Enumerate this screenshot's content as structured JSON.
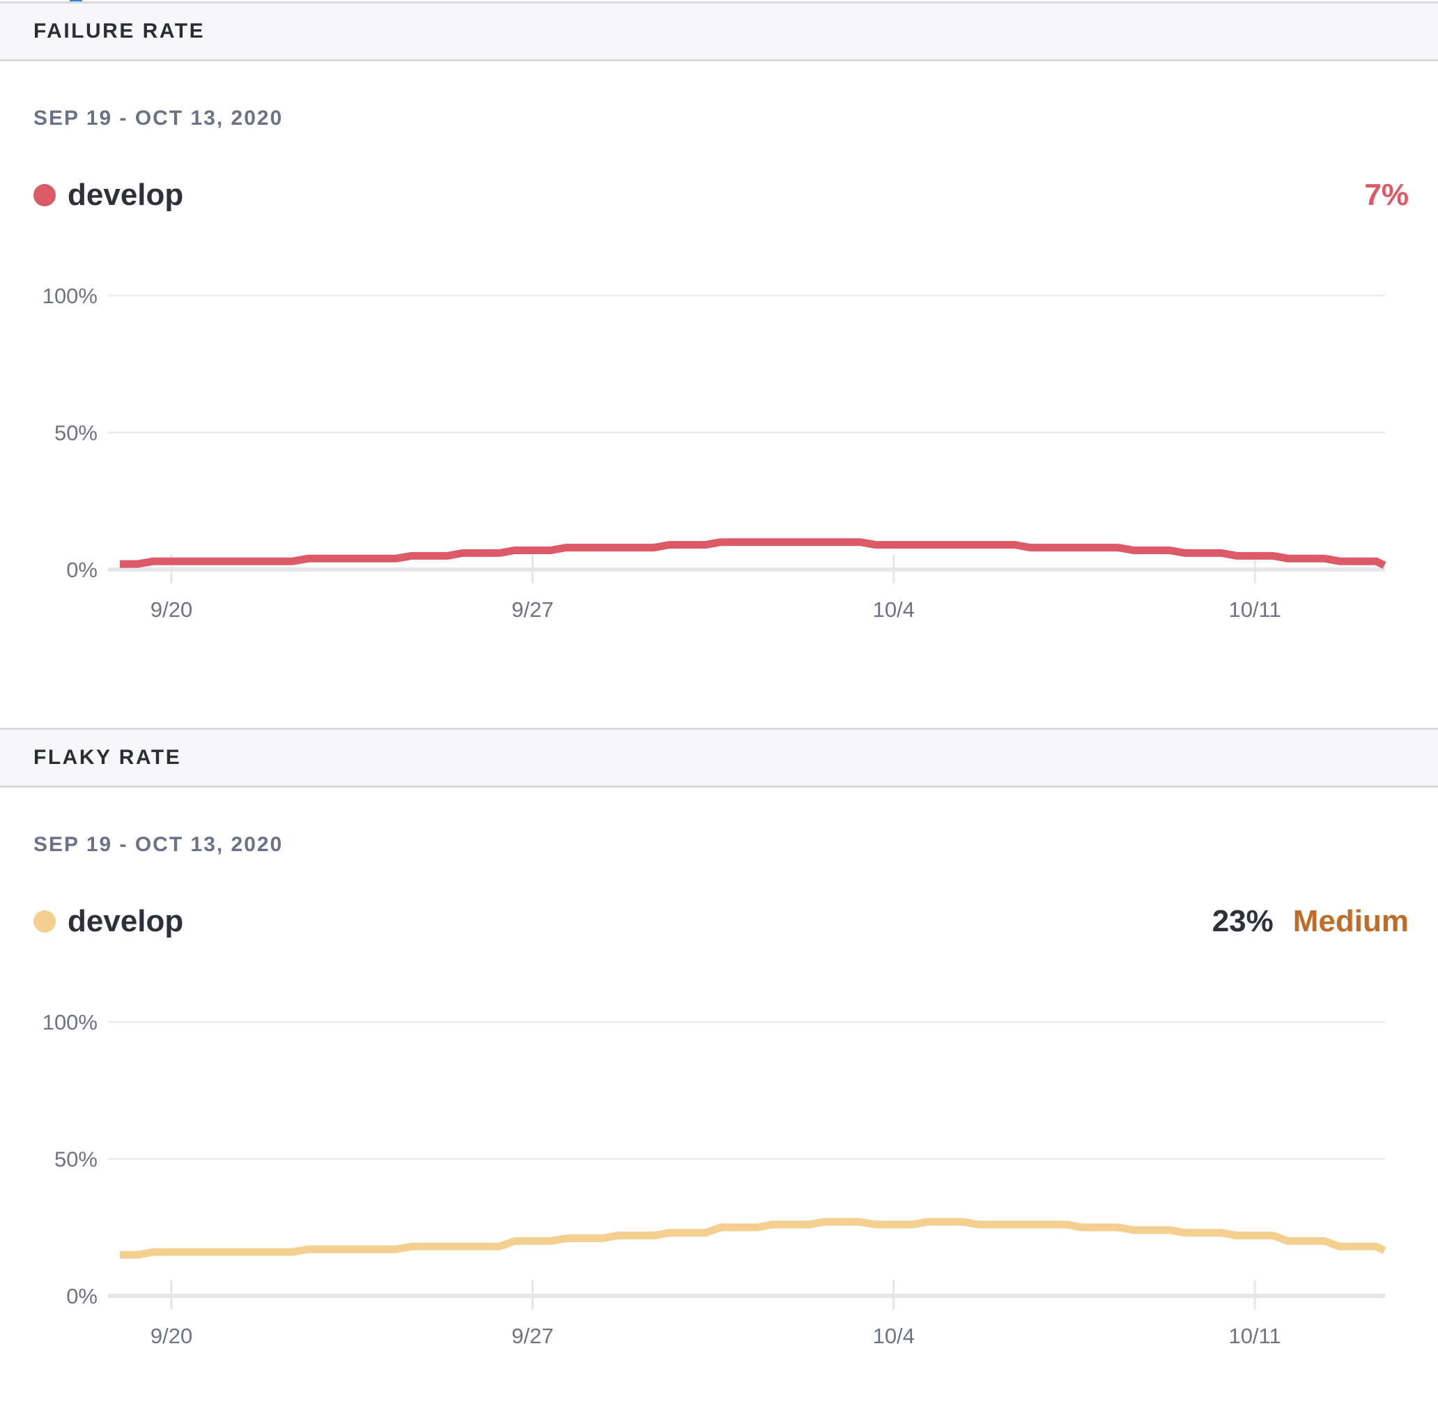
{
  "page": {
    "clipped_element_color": "#2e86d8"
  },
  "chart_data": [
    {
      "id": "failure-rate",
      "type": "line",
      "line_style": "stepped",
      "title": "FAILURE RATE",
      "subtitle": "SEP 19 - OCT 13, 2020",
      "legend": {
        "label": "develop",
        "dot_color": "#dc5a67"
      },
      "summary": {
        "value": "7%",
        "value_color": "#dc5a67"
      },
      "x": [
        "9/19",
        "9/20",
        "9/21",
        "9/22",
        "9/23",
        "9/24",
        "9/25",
        "9/26",
        "9/27",
        "9/28",
        "9/29",
        "9/30",
        "10/1",
        "10/2",
        "10/3",
        "10/4",
        "10/5",
        "10/6",
        "10/7",
        "10/8",
        "10/9",
        "10/10",
        "10/11",
        "10/12",
        "10/13"
      ],
      "x_tick_labels": [
        "9/20",
        "9/27",
        "10/4",
        "10/11"
      ],
      "x_tick_day_index": [
        1,
        8,
        15,
        22
      ],
      "y_tick_labels": [
        "0%",
        "50%",
        "100%"
      ],
      "ylim": [
        0,
        100
      ],
      "unit": "%",
      "grid": true,
      "legend_position": "top-left",
      "series": [
        {
          "name": "develop",
          "color": "#dc5a67",
          "values": [
            2,
            3,
            3,
            3,
            4,
            4,
            5,
            6,
            7,
            8,
            8,
            9,
            10,
            10,
            10,
            9,
            9,
            9,
            8,
            8,
            7,
            6,
            5,
            4,
            3
          ]
        }
      ]
    },
    {
      "id": "flaky-rate",
      "type": "line",
      "line_style": "stepped",
      "title": "FLAKY RATE",
      "subtitle": "SEP 19 - OCT 13, 2020",
      "legend": {
        "label": "develop",
        "dot_color": "#f4cf90"
      },
      "summary": {
        "value": "23%",
        "value_color": "#2c313c",
        "severity": "Medium",
        "severity_color": "#bf6c28"
      },
      "x": [
        "9/19",
        "9/20",
        "9/21",
        "9/22",
        "9/23",
        "9/24",
        "9/25",
        "9/26",
        "9/27",
        "9/28",
        "9/29",
        "9/30",
        "10/1",
        "10/2",
        "10/3",
        "10/4",
        "10/5",
        "10/6",
        "10/7",
        "10/8",
        "10/9",
        "10/10",
        "10/11",
        "10/12",
        "10/13"
      ],
      "x_tick_labels": [
        "9/20",
        "9/27",
        "10/4",
        "10/11"
      ],
      "x_tick_day_index": [
        1,
        8,
        15,
        22
      ],
      "y_tick_labels": [
        "0%",
        "50%",
        "100%"
      ],
      "ylim": [
        0,
        100
      ],
      "unit": "%",
      "grid": true,
      "legend_position": "top-left",
      "series": [
        {
          "name": "develop",
          "color": "#f4cf90",
          "values": [
            15,
            16,
            16,
            16,
            17,
            17,
            18,
            18,
            20,
            21,
            22,
            23,
            25,
            26,
            27,
            26,
            27,
            26,
            26,
            25,
            24,
            23,
            22,
            20,
            18
          ]
        }
      ]
    }
  ],
  "style": {
    "grid_color": "#ededf1",
    "axis_color": "#e6e6ea",
    "axis_label_color": "#6d7285"
  }
}
